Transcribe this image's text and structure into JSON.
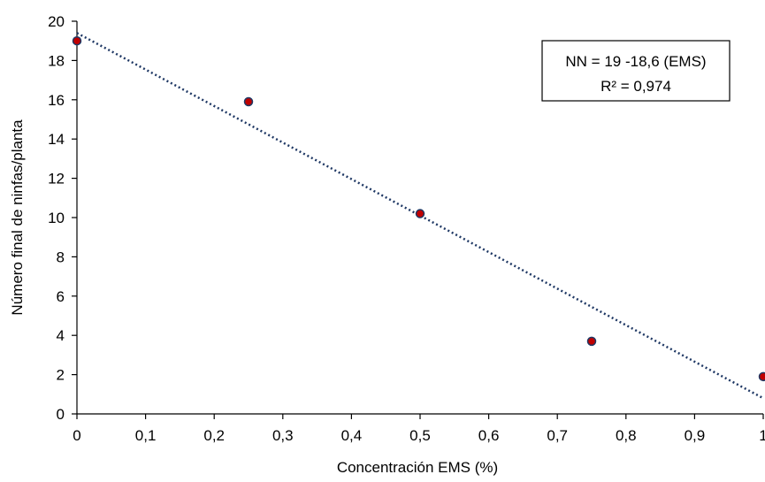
{
  "chart_data": {
    "type": "scatter",
    "title": "",
    "xlabel": "Concentración EMS (%)",
    "ylabel": "Número final de ninfas/planta",
    "xlim": [
      0,
      1
    ],
    "ylim": [
      0,
      20
    ],
    "x_ticks": [
      0,
      0.1,
      0.2,
      0.3,
      0.4,
      0.5,
      0.6,
      0.7,
      0.8,
      0.9,
      1
    ],
    "x_tick_labels": [
      "0",
      "0,1",
      "0,2",
      "0,3",
      "0,4",
      "0,5",
      "0,6",
      "0,7",
      "0,8",
      "0,9",
      "1"
    ],
    "y_ticks": [
      0,
      2,
      4,
      6,
      8,
      10,
      12,
      14,
      16,
      18,
      20
    ],
    "y_tick_labels": [
      "0",
      "2",
      "4",
      "6",
      "8",
      "10",
      "12",
      "14",
      "16",
      "18",
      "20"
    ],
    "grid": false,
    "series": [
      {
        "x": [
          0,
          0.25,
          0.5,
          0.75,
          1
        ],
        "y": [
          19,
          15.9,
          10.2,
          3.7,
          1.9
        ],
        "marker_fill": "#c00000",
        "marker_edge": "#1f3864"
      }
    ],
    "trendline": {
      "type": "linear",
      "intercept": 19.4,
      "slope": -18.6,
      "style": "dotted",
      "color": "#1f3864"
    },
    "annotation": {
      "line1": "NN = 19 -18,6 (EMS)",
      "line2": "R² = 0,974"
    }
  }
}
